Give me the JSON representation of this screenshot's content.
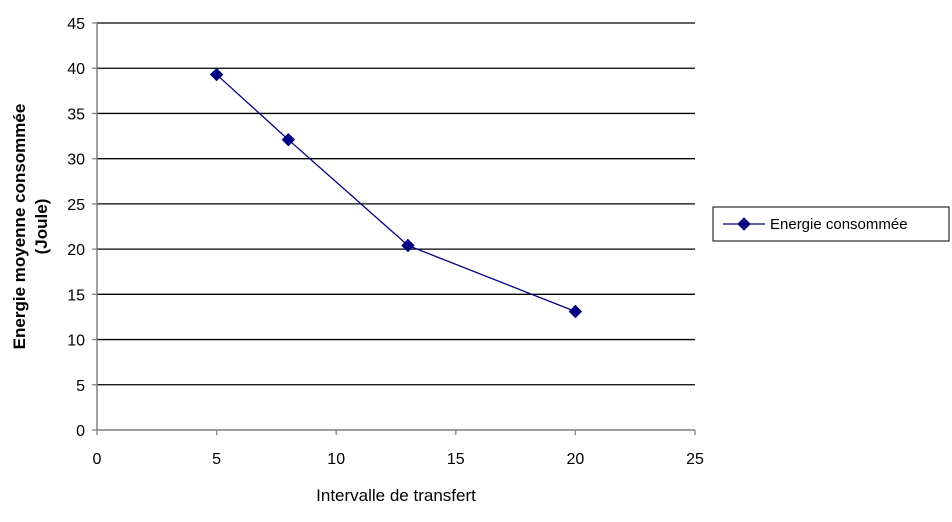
{
  "chart_data": {
    "type": "line",
    "title": "",
    "xlabel": "Intervalle de transfert",
    "ylabel_line1": "Energie moyenne consommée",
    "ylabel_line2": "(Joule)",
    "xlim": [
      0,
      25
    ],
    "ylim": [
      0,
      45
    ],
    "xticks": [
      0,
      5,
      10,
      15,
      20,
      25
    ],
    "yticks": [
      0,
      5,
      10,
      15,
      20,
      25,
      30,
      35,
      40,
      45
    ],
    "grid": "horizontal",
    "legend_position": "right",
    "series": [
      {
        "name": "Energie consommée",
        "color": "#000080",
        "marker": "diamond",
        "x": [
          5,
          8,
          13,
          20
        ],
        "y": [
          39.3,
          32.1,
          20.4,
          13.1
        ]
      }
    ]
  }
}
